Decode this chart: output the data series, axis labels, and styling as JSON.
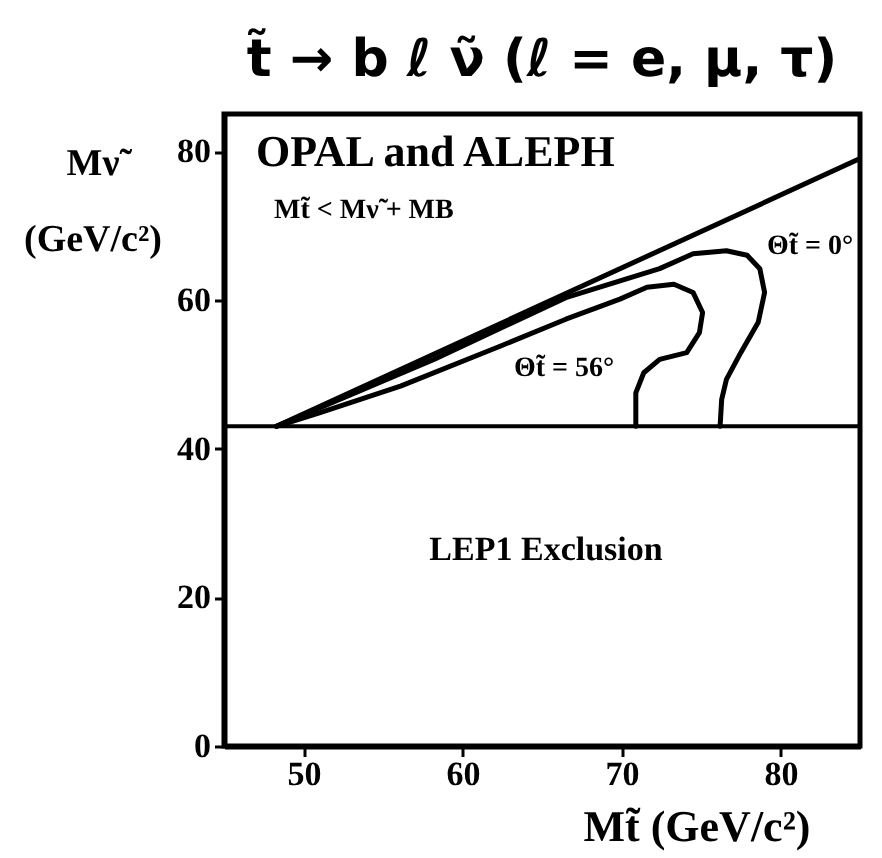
{
  "chart_data": {
    "type": "line",
    "title": "t̃ → b ℓ ν̃ (ℓ = e, μ, τ)",
    "xlabel": "Mt̃  (GeV/c²)",
    "ylabel": "Mν̃\n(GeV/c²)",
    "xlim": [
      45,
      85
    ],
    "ylim": [
      0,
      85
    ],
    "xticks": [
      50,
      60,
      70,
      80
    ],
    "yticks": [
      0,
      20,
      40,
      60,
      80
    ],
    "series": [
      {
        "color": "#000000",
        "x": [
          48.3,
          85
        ],
        "values": [
          43,
          79
        ]
      },
      {
        "color": "#000000",
        "x": [
          48.3,
          58.2,
          66.5,
          72.4,
          74.5,
          76.6,
          77.9,
          78.7,
          79.0,
          78.6,
          77.5,
          76.6,
          76.3,
          76.2
        ],
        "values": [
          43,
          52.0,
          60.3,
          64.2,
          66.2,
          66.6,
          66.0,
          64.2,
          61.0,
          57.0,
          52.9,
          49.3,
          46.6,
          43
        ]
      },
      {
        "color": "#000000",
        "x": [
          48.3,
          51.0,
          56.1,
          62.4,
          66.5,
          69.9,
          71.6,
          73.3,
          74.5,
          75.1,
          74.9,
          74.1,
          72.4,
          71.4,
          70.9,
          70.9
        ],
        "values": [
          43,
          44.8,
          48.4,
          53.8,
          57.4,
          60.1,
          61.7,
          62.1,
          61.0,
          58.3,
          55.6,
          52.9,
          52.0,
          50.2,
          47.5,
          43
        ]
      }
    ],
    "ref_lines": [
      {
        "axis": "y",
        "value": 43,
        "color": "#000000"
      }
    ],
    "annotations": [
      "OPAL and ALEPH",
      "Mt̃ < Mν̃ + MB",
      "Θt̃ = 0°",
      "Θt̃ = 56°",
      "LEP1 Exclusion"
    ]
  }
}
